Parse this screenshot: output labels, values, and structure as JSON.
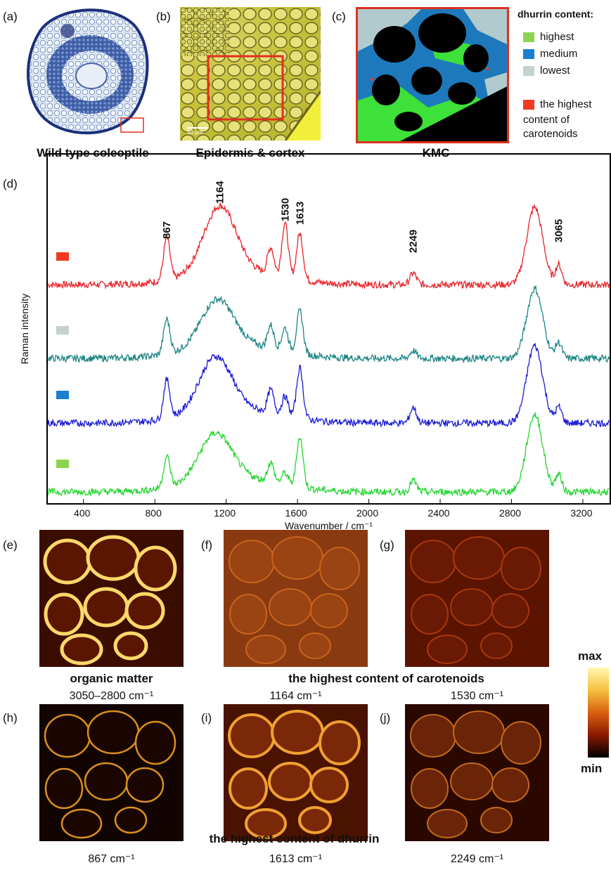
{
  "panels": {
    "a": {
      "label": "(a)",
      "caption": "Wild type coleoptile"
    },
    "b": {
      "label": "(b)",
      "caption": "Epidermis & cortex",
      "scalebar": "50 µm"
    },
    "c": {
      "label": "(c)",
      "caption": "KMC"
    },
    "d": {
      "label": "(d)"
    },
    "e": {
      "label": "(e)"
    },
    "f": {
      "label": "(f)"
    },
    "g": {
      "label": "(g)"
    },
    "h": {
      "label": "(h)"
    },
    "i": {
      "label": "(i)"
    },
    "j": {
      "label": "(j)"
    }
  },
  "legend": {
    "title": "dhurrin content:",
    "items": [
      {
        "label": "highest",
        "color": "#8cd450"
      },
      {
        "label": "medium",
        "color": "#1a7fcf"
      },
      {
        "label": "lowest",
        "color": "#c2d3cf"
      }
    ],
    "carotenoid_label_line1": "the highest",
    "carotenoid_label_line2": "content of",
    "carotenoid_label_line3": "carotenoids",
    "carotenoid_color": "#ee3a20"
  },
  "maps": {
    "e_caption": "organic matter",
    "e_range": "3050–2800 cm⁻¹",
    "fg_caption": "the highest content of carotenoids",
    "f_range": "1164 cm⁻¹",
    "g_range": "1530 cm⁻¹",
    "hij_caption": "the highest content of dhurrin",
    "h_range": "867 cm⁻¹",
    "i_range": "1613 cm⁻¹",
    "j_range": "2249 cm⁻¹",
    "scale_max": "max",
    "scale_min": "min"
  },
  "chart_data": {
    "type": "line",
    "xlabel": "Wavenumber / cm⁻¹",
    "ylabel": "Raman intensity",
    "xlim": [
      200,
      3350
    ],
    "xticks": [
      400,
      800,
      1200,
      1600,
      2000,
      2400,
      2800,
      3200
    ],
    "peak_labels": [
      "867",
      "1164",
      "1530",
      "1613",
      "2249",
      "3065"
    ],
    "series": [
      {
        "color": "#e8242a",
        "marker_color": "#ee3a20",
        "peaks": [
          [
            867,
            0.55
          ],
          [
            1164,
            0.85
          ],
          [
            1450,
            0.35
          ],
          [
            1530,
            0.7
          ],
          [
            1613,
            0.6
          ],
          [
            2249,
            0.15
          ],
          [
            2930,
            1.0
          ],
          [
            3065,
            0.25
          ]
        ]
      },
      {
        "color": "#1e8585",
        "marker_color": "#c2d3cf",
        "peaks": [
          [
            867,
            0.45
          ],
          [
            1150,
            0.6
          ],
          [
            1450,
            0.3
          ],
          [
            1530,
            0.3
          ],
          [
            1613,
            0.55
          ],
          [
            2249,
            0.1
          ],
          [
            2930,
            0.9
          ],
          [
            3065,
            0.2
          ]
        ]
      },
      {
        "color": "#1a1ad6",
        "marker_color": "#1a7fcf",
        "peaks": [
          [
            867,
            0.5
          ],
          [
            1140,
            0.7
          ],
          [
            1450,
            0.3
          ],
          [
            1530,
            0.25
          ],
          [
            1613,
            0.65
          ],
          [
            2249,
            0.2
          ],
          [
            2930,
            1.0
          ],
          [
            3065,
            0.2
          ]
        ]
      },
      {
        "color": "#25d630",
        "marker_color": "#8cd450",
        "peaks": [
          [
            867,
            0.4
          ],
          [
            1140,
            0.6
          ],
          [
            1450,
            0.25
          ],
          [
            1530,
            0.15
          ],
          [
            1613,
            0.65
          ],
          [
            2249,
            0.15
          ],
          [
            2930,
            1.0
          ],
          [
            3065,
            0.22
          ]
        ]
      }
    ]
  }
}
